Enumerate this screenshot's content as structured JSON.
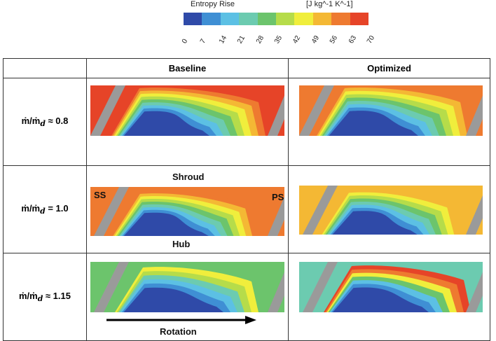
{
  "legend": {
    "title": "Entropy Rise",
    "units": "[J kg^-1 K^-1]",
    "ticks": [
      "0",
      "7",
      "14",
      "21",
      "28",
      "35",
      "42",
      "49",
      "56",
      "63",
      "70"
    ],
    "colors": [
      "#2f4aa8",
      "#3f8fd4",
      "#5cc0e4",
      "#6ccbb0",
      "#6cc46c",
      "#b6dc4a",
      "#f0ee3c",
      "#f4b834",
      "#ee7a30",
      "#e64428"
    ]
  },
  "columns": {
    "baseline": "Baseline",
    "optimized": "Optimized"
  },
  "rows": [
    {
      "label_prefix": "ṁ/ṁ",
      "label_sub": "d",
      "label_suffix": " ≈ 0.8"
    },
    {
      "label_prefix": "ṁ/ṁ",
      "label_sub": "d",
      "label_suffix": " = 1.0"
    },
    {
      "label_prefix": "ṁ/ṁ",
      "label_sub": "d",
      "label_suffix": " ≈ 1.15"
    }
  ],
  "annotations": {
    "shroud": "Shroud",
    "hub": "Hub",
    "ss": "SS",
    "ps": "PS",
    "rotation": "Rotation"
  }
}
